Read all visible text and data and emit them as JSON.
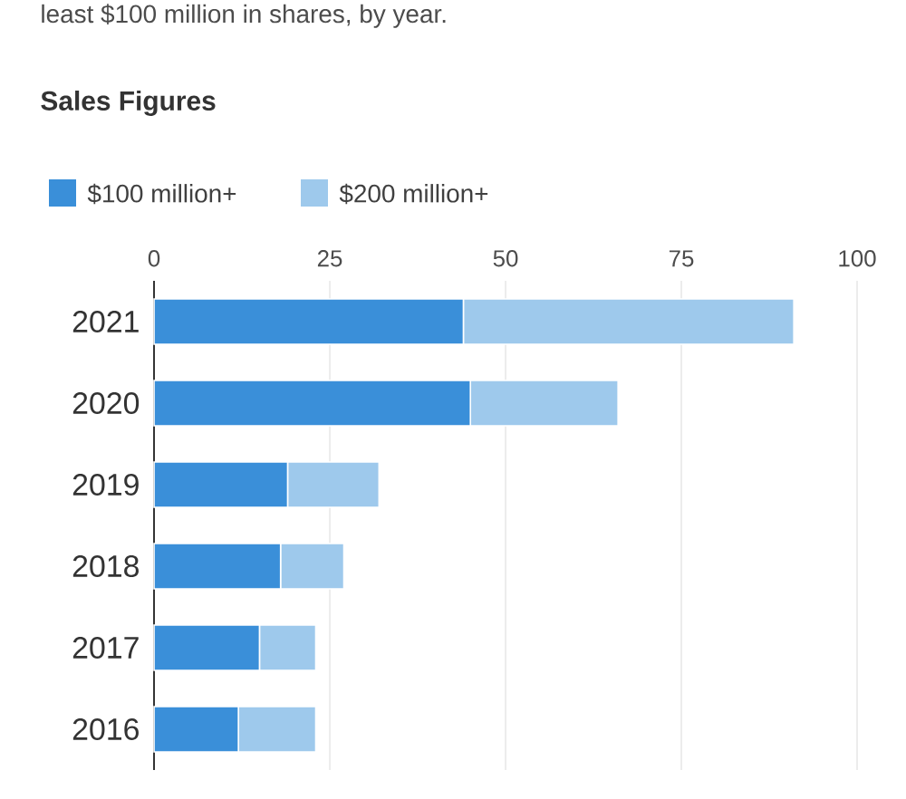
{
  "chart_data": {
    "type": "bar",
    "orientation": "horizontal",
    "stacked": true,
    "subtitle": "least $100 million in shares, by year.",
    "title": "Sales Figures",
    "categories": [
      "2021",
      "2020",
      "2019",
      "2018",
      "2017",
      "2016"
    ],
    "series": [
      {
        "name": "$100 million+",
        "color": "#3a8fd9",
        "values": [
          44,
          45,
          19,
          18,
          15,
          12
        ]
      },
      {
        "name": "$200 million+",
        "color": "#9ec9ec",
        "values": [
          47,
          21,
          13,
          9,
          8,
          11
        ]
      }
    ],
    "xlim": [
      0,
      100
    ],
    "xticks": [
      0,
      25,
      50,
      75,
      100
    ],
    "grid": "x",
    "legend": "top left"
  }
}
